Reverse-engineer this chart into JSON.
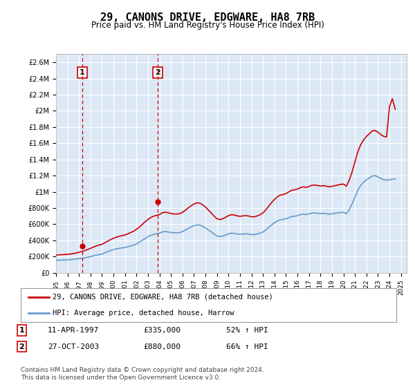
{
  "title": "29, CANONS DRIVE, EDGWARE, HA8 7RB",
  "subtitle": "Price paid vs. HM Land Registry's House Price Index (HPI)",
  "background_color": "#ffffff",
  "plot_bg_color": "#dce8f5",
  "grid_color": "#ffffff",
  "ylim": [
    0,
    2700000
  ],
  "yticks": [
    0,
    200000,
    400000,
    600000,
    800000,
    1000000,
    1200000,
    1400000,
    1600000,
    1800000,
    2000000,
    2200000,
    2400000,
    2600000
  ],
  "ytick_labels": [
    "£0",
    "£200K",
    "£400K",
    "£600K",
    "£800K",
    "£1M",
    "£1.2M",
    "£1.4M",
    "£1.6M",
    "£1.8M",
    "£2M",
    "£2.2M",
    "£2.4M",
    "£2.6M"
  ],
  "xlim_start": 1995.0,
  "xlim_end": 2025.5,
  "event1_x": 1997.27,
  "event1_y": 335000,
  "event1_label": "1",
  "event1_date": "11-APR-1997",
  "event1_price": "£335,000",
  "event1_hpi": "52% ↑ HPI",
  "event2_x": 2003.82,
  "event2_y": 880000,
  "event2_label": "2",
  "event2_date": "27-OCT-2003",
  "event2_price": "£880,000",
  "event2_hpi": "66% ↑ HPI",
  "line_color_red": "#cc0000",
  "line_color_blue": "#6699cc",
  "legend_label_red": "29, CANONS DRIVE, EDGWARE, HA8 7RB (detached house)",
  "legend_label_blue": "HPI: Average price, detached house, Harrow",
  "footer1": "Contains HM Land Registry data © Crown copyright and database right 2024.",
  "footer2": "This data is licensed under the Open Government Licence v3.0.",
  "hpi_data_x": [
    1995.0,
    1995.25,
    1995.5,
    1995.75,
    1996.0,
    1996.25,
    1996.5,
    1996.75,
    1997.0,
    1997.25,
    1997.5,
    1997.75,
    1998.0,
    1998.25,
    1998.5,
    1998.75,
    1999.0,
    1999.25,
    1999.5,
    1999.75,
    2000.0,
    2000.25,
    2000.5,
    2000.75,
    2001.0,
    2001.25,
    2001.5,
    2001.75,
    2002.0,
    2002.25,
    2002.5,
    2002.75,
    2003.0,
    2003.25,
    2003.5,
    2003.75,
    2004.0,
    2004.25,
    2004.5,
    2004.75,
    2005.0,
    2005.25,
    2005.5,
    2005.75,
    2006.0,
    2006.25,
    2006.5,
    2006.75,
    2007.0,
    2007.25,
    2007.5,
    2007.75,
    2008.0,
    2008.25,
    2008.5,
    2008.75,
    2009.0,
    2009.25,
    2009.5,
    2009.75,
    2010.0,
    2010.25,
    2010.5,
    2010.75,
    2011.0,
    2011.25,
    2011.5,
    2011.75,
    2012.0,
    2012.25,
    2012.5,
    2012.75,
    2013.0,
    2013.25,
    2013.5,
    2013.75,
    2014.0,
    2014.25,
    2014.5,
    2014.75,
    2015.0,
    2015.25,
    2015.5,
    2015.75,
    2016.0,
    2016.25,
    2016.5,
    2016.75,
    2017.0,
    2017.25,
    2017.5,
    2017.75,
    2018.0,
    2018.25,
    2018.5,
    2018.75,
    2019.0,
    2019.25,
    2019.5,
    2019.75,
    2020.0,
    2020.25,
    2020.5,
    2020.75,
    2021.0,
    2021.25,
    2021.5,
    2021.75,
    2022.0,
    2022.25,
    2022.5,
    2022.75,
    2023.0,
    2023.25,
    2023.5,
    2023.75,
    2024.0,
    2024.25,
    2024.5
  ],
  "hpi_data_y": [
    155000,
    157000,
    158000,
    159000,
    160000,
    163000,
    167000,
    171000,
    176000,
    180000,
    186000,
    193000,
    201000,
    210000,
    218000,
    225000,
    232000,
    248000,
    262000,
    276000,
    287000,
    296000,
    303000,
    308000,
    313000,
    322000,
    332000,
    342000,
    358000,
    378000,
    402000,
    425000,
    446000,
    463000,
    475000,
    482000,
    490000,
    505000,
    510000,
    505000,
    498000,
    495000,
    494000,
    497000,
    510000,
    527000,
    548000,
    567000,
    582000,
    592000,
    590000,
    575000,
    555000,
    530000,
    505000,
    478000,
    455000,
    448000,
    455000,
    468000,
    482000,
    490000,
    488000,
    480000,
    476000,
    480000,
    482000,
    479000,
    472000,
    472000,
    480000,
    490000,
    505000,
    530000,
    562000,
    592000,
    618000,
    640000,
    655000,
    660000,
    668000,
    682000,
    695000,
    700000,
    705000,
    718000,
    725000,
    720000,
    728000,
    738000,
    740000,
    735000,
    732000,
    735000,
    730000,
    725000,
    728000,
    735000,
    740000,
    745000,
    748000,
    730000,
    780000,
    850000,
    935000,
    1020000,
    1080000,
    1120000,
    1150000,
    1170000,
    1195000,
    1200000,
    1185000,
    1165000,
    1150000,
    1145000,
    1148000,
    1155000,
    1160000
  ],
  "price_data_x": [
    1995.0,
    1995.25,
    1995.5,
    1995.75,
    1996.0,
    1996.25,
    1996.5,
    1996.75,
    1997.0,
    1997.25,
    1997.5,
    1997.75,
    1998.0,
    1998.25,
    1998.5,
    1998.75,
    1999.0,
    1999.25,
    1999.5,
    1999.75,
    2000.0,
    2000.25,
    2000.5,
    2000.75,
    2001.0,
    2001.25,
    2001.5,
    2001.75,
    2002.0,
    2002.25,
    2002.5,
    2002.75,
    2003.0,
    2003.25,
    2003.5,
    2003.75,
    2004.0,
    2004.25,
    2004.5,
    2004.75,
    2005.0,
    2005.25,
    2005.5,
    2005.75,
    2006.0,
    2006.25,
    2006.5,
    2006.75,
    2007.0,
    2007.25,
    2007.5,
    2007.75,
    2008.0,
    2008.25,
    2008.5,
    2008.75,
    2009.0,
    2009.25,
    2009.5,
    2009.75,
    2010.0,
    2010.25,
    2010.5,
    2010.75,
    2011.0,
    2011.25,
    2011.5,
    2011.75,
    2012.0,
    2012.25,
    2012.5,
    2012.75,
    2013.0,
    2013.25,
    2013.5,
    2013.75,
    2014.0,
    2014.25,
    2014.5,
    2014.75,
    2015.0,
    2015.25,
    2015.5,
    2015.75,
    2016.0,
    2016.25,
    2016.5,
    2016.75,
    2017.0,
    2017.25,
    2017.5,
    2017.75,
    2018.0,
    2018.25,
    2018.5,
    2018.75,
    2019.0,
    2019.25,
    2019.5,
    2019.75,
    2020.0,
    2020.25,
    2020.5,
    2020.75,
    2021.0,
    2021.25,
    2021.5,
    2021.75,
    2022.0,
    2022.25,
    2022.5,
    2022.75,
    2023.0,
    2023.25,
    2023.5,
    2023.75,
    2024.0,
    2024.25,
    2024.5
  ],
  "price_data_y": [
    220000,
    222000,
    224000,
    226000,
    228000,
    232000,
    238000,
    245000,
    254000,
    263000,
    275000,
    288000,
    303000,
    318000,
    332000,
    343000,
    352000,
    372000,
    392000,
    411000,
    426000,
    440000,
    451000,
    460000,
    468000,
    482000,
    498000,
    515000,
    538000,
    565000,
    598000,
    630000,
    660000,
    684000,
    700000,
    710000,
    720000,
    742000,
    749000,
    742000,
    732000,
    727000,
    726000,
    730000,
    748000,
    773000,
    802000,
    828000,
    850000,
    864000,
    862000,
    840000,
    812000,
    775000,
    740000,
    700000,
    668000,
    658000,
    668000,
    686000,
    706000,
    718000,
    715000,
    703000,
    698000,
    703000,
    706000,
    702000,
    692000,
    692000,
    703000,
    718000,
    740000,
    778000,
    823000,
    868000,
    906000,
    938000,
    960000,
    967000,
    979000,
    1000000,
    1019000,
    1026000,
    1034000,
    1052000,
    1062000,
    1055000,
    1067000,
    1081000,
    1084000,
    1078000,
    1072000,
    1077000,
    1070000,
    1063000,
    1067000,
    1077000,
    1084000,
    1092000,
    1096000,
    1070000,
    1143000,
    1246000,
    1371000,
    1496000,
    1583000,
    1641000,
    1685000,
    1716000,
    1752000,
    1758000,
    1736000,
    1708000,
    1685000,
    1678000,
    2050000,
    2150000,
    2020000
  ]
}
